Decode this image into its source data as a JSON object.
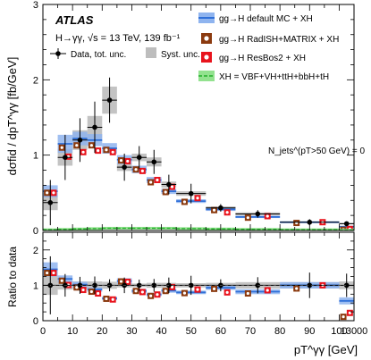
{
  "chart_data": {
    "type": "bar",
    "experiment": "ATLAS",
    "process": "H→γγ, √s = 13 TeV, 139 fb⁻¹",
    "jet_selection": "N_jets^(pT>50 GeV) = 0",
    "ylabel": "dσfid / dpT^γγ [fb/GeV]",
    "ratio_ylabel": "Ratio to data",
    "xlabel": "pT^γγ [GeV]",
    "x_ticks": [
      "0",
      "5",
      "10",
      "15",
      "20",
      "25",
      "30",
      "35",
      "40",
      "45",
      "50",
      "55",
      "60",
      "65",
      "70",
      "75",
      "80",
      "85",
      "90",
      "95",
      "100",
      "13000"
    ],
    "x_major_labels": [
      "0",
      "10",
      "20",
      "30",
      "40",
      "50",
      "60",
      "70",
      "80",
      "90",
      "100",
      "13000"
    ],
    "ylim": [
      0,
      3
    ],
    "y_ticks": [
      "0",
      "1",
      "2",
      "3"
    ],
    "ratio_ylim": [
      0,
      2.5
    ],
    "ratio_y_ticks": [
      "0",
      "1",
      "2"
    ],
    "bin_edges": [
      0,
      5,
      10,
      15,
      20,
      25,
      30,
      35,
      40,
      45,
      55,
      65,
      80,
      100,
      110
    ],
    "legend": {
      "data": "Data, tot. unc.",
      "syst": "Syst. unc.",
      "default_mc": "gg→H default MC + XH",
      "radish": "gg→H RadISH+MATRIX + XH",
      "resbos": "gg→H ResBos2 + XH",
      "xh": "XH = VBF+VH+ttH+bbH+tH"
    },
    "colors": {
      "default_mc": "#2e6fd8",
      "default_mc_band": "#8fb4ef",
      "radish": "#8b3a0f",
      "resbos": "#e8141d",
      "xh": "#22b02a",
      "xh_band": "#93e28f",
      "syst": "#bdbdbd"
    },
    "data": {
      "values": [
        0.37,
        0.97,
        1.2,
        1.37,
        1.73,
        0.84,
        0.97,
        0.91,
        0.61,
        0.49,
        0.3,
        0.22,
        0.11,
        0.09
      ],
      "stat_err": [
        0.3,
        0.3,
        0.29,
        0.34,
        0.3,
        0.18,
        0.15,
        0.16,
        0.13,
        0.13,
        0.05,
        0.05,
        0.04,
        0.03
      ],
      "syst_err": [
        0.1,
        0.11,
        0.13,
        0.15,
        0.18,
        0.05,
        0.05,
        0.06,
        0.04,
        0.03,
        0.02,
        0.02,
        0.01,
        0.01
      ]
    },
    "default_mc": {
      "values": [
        0.52,
        1.15,
        1.22,
        1.2,
        1.09,
        0.94,
        0.81,
        0.67,
        0.52,
        0.39,
        0.28,
        0.18,
        0.11,
        0.05
      ],
      "err": [
        0.08,
        0.12,
        0.09,
        0.08,
        0.07,
        0.06,
        0.05,
        0.04,
        0.035,
        0.025,
        0.02,
        0.015,
        0.01,
        0.01
      ]
    },
    "radish": {
      "values": [
        0.5,
        1.1,
        1.13,
        1.13,
        1.07,
        0.93,
        0.81,
        0.64,
        0.51,
        0.38,
        0.27,
        0.17,
        0.1,
        0.01
      ],
      "err": [
        0.05,
        0.05,
        0.05,
        0.05,
        0.04,
        0.04,
        0.03,
        0.03,
        0.02,
        0.02,
        0.015,
        0.01,
        0.01,
        0.01
      ]
    },
    "resbos": {
      "values": [
        0.5,
        0.98,
        1.04,
        1.06,
        1.04,
        0.92,
        0.79,
        0.67,
        0.58,
        0.43,
        0.24,
        0.19,
        0.11,
        0.02
      ],
      "err": [
        0.1,
        0.08,
        0.06,
        0.05,
        0.04,
        0.04,
        0.04,
        0.04,
        0.03,
        0.03,
        0.02,
        0.015,
        0.01,
        0.01
      ]
    },
    "xh": {
      "values": [
        0.01,
        0.015,
        0.02,
        0.025,
        0.03,
        0.03,
        0.03,
        0.03,
        0.03,
        0.025,
        0.02,
        0.015,
        0.01,
        0.005
      ]
    },
    "ratio": {
      "data_err": [
        0.82,
        0.32,
        0.24,
        0.25,
        0.17,
        0.22,
        0.16,
        0.18,
        0.22,
        0.27,
        0.17,
        0.23,
        0.36,
        0.33
      ],
      "syst_err": [
        0.27,
        0.12,
        0.11,
        0.11,
        0.1,
        0.06,
        0.05,
        0.07,
        0.07,
        0.06,
        0.07,
        0.09,
        0.09,
        0.11
      ],
      "default_mc": [
        1.45,
        1.18,
        1.02,
        0.88,
        0.63,
        1.12,
        0.84,
        0.74,
        0.85,
        0.8,
        0.93,
        0.82,
        1.0,
        0.56
      ],
      "default_mc_err": [
        0.2,
        0.1,
        0.08,
        0.06,
        0.05,
        0.08,
        0.06,
        0.05,
        0.06,
        0.05,
        0.06,
        0.07,
        0.09,
        0.1
      ],
      "radish": [
        1.35,
        1.13,
        0.94,
        0.82,
        0.62,
        1.11,
        0.84,
        0.7,
        0.84,
        0.78,
        0.9,
        0.77,
        0.91,
        0.11
      ],
      "resbos": [
        1.35,
        1.01,
        0.87,
        0.77,
        0.6,
        1.1,
        0.81,
        0.74,
        0.95,
        0.88,
        0.8,
        0.86,
        1.0,
        0.22
      ]
    }
  }
}
